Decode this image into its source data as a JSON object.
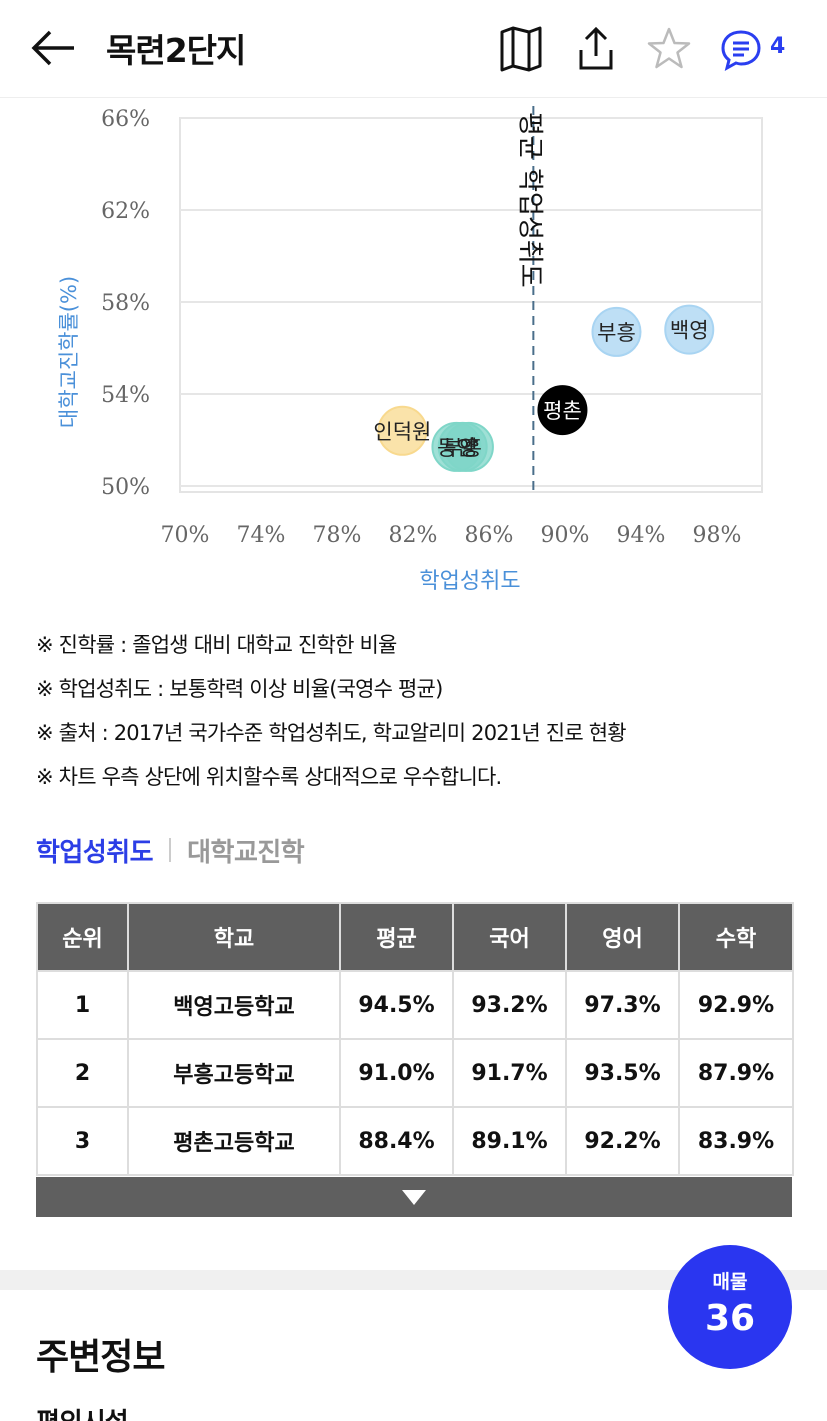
{
  "header": {
    "title": "목련2단지",
    "comment_count": "4",
    "icons": [
      "back-arrow-icon",
      "map-icon",
      "share-icon",
      "star-icon",
      "chat-icon"
    ]
  },
  "chart_data": {
    "type": "scatter",
    "xlabel": "학업성취도",
    "ylabel": "대학교진학률(%)",
    "xlim": [
      70,
      98
    ],
    "ylim": [
      50,
      66
    ],
    "x_ticks": [
      "70%",
      "74%",
      "78%",
      "82%",
      "86%",
      "90%",
      "94%",
      "98%"
    ],
    "y_ticks": [
      "66%",
      "62%",
      "58%",
      "54%",
      "50%"
    ],
    "reference_line": {
      "x": 87.0,
      "label": "평균 학업성취도"
    },
    "points": [
      {
        "label": "백영",
        "x": 94.5,
        "y": 56.8,
        "color": "#a8d4f2"
      },
      {
        "label": "부흥",
        "x": 91.0,
        "y": 56.7,
        "color": "#a8d4f2"
      },
      {
        "label": "평촌",
        "x": 88.4,
        "y": 53.3,
        "color": "#000000"
      },
      {
        "label": "인덕원",
        "x": 80.7,
        "y": 52.4,
        "color": "#f8d98e"
      },
      {
        "label": "동안",
        "x": 83.3,
        "y": 51.7,
        "color": "#7fd6c8"
      },
      {
        "label": "부흥",
        "x": 83.6,
        "y": 51.7,
        "color": "#7fd6c8"
      },
      {
        "label": "양",
        "x": 83.9,
        "y": 51.7,
        "color": "#7fd6c8"
      }
    ]
  },
  "notes": [
    "※ 진학률 : 졸업생 대비 대학교 진학한 비율",
    "※ 학업성취도 : 보통학력 이상 비율(국영수 평균)",
    "※ 출처 : 2017년 국가수준 학업성취도, 학교알리미 2021년 진로 현황",
    "※ 차트 우측 상단에 위치할수록 상대적으로 우수합니다."
  ],
  "tabs": [
    {
      "label": "학업성취도",
      "active": true
    },
    {
      "label": "대학교진학",
      "active": false
    }
  ],
  "table": {
    "headers": [
      "순위",
      "학교",
      "평균",
      "국어",
      "영어",
      "수학"
    ],
    "rows": [
      [
        "1",
        "백영고등학교",
        "94.5%",
        "93.2%",
        "97.3%",
        "92.9%"
      ],
      [
        "2",
        "부흥고등학교",
        "91.0%",
        "91.7%",
        "93.5%",
        "87.9%"
      ],
      [
        "3",
        "평촌고등학교",
        "88.4%",
        "89.1%",
        "92.2%",
        "83.9%"
      ]
    ]
  },
  "section": {
    "title": "주변정보",
    "subtitle": "편의시설"
  },
  "fab": {
    "label": "매물",
    "count": "36"
  },
  "colors": {
    "accent": "#2a36f0",
    "axis_label": "#4a90d9",
    "table_header": "#5f5f5f"
  }
}
